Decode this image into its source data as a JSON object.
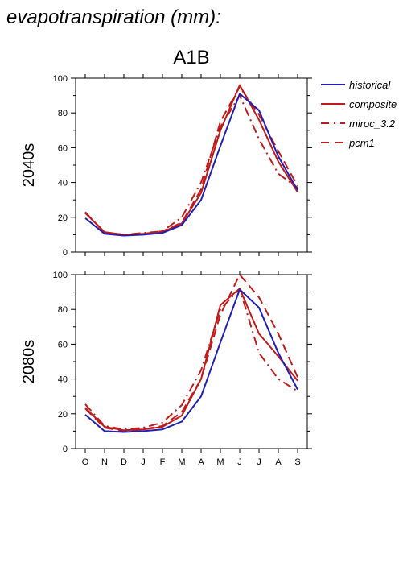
{
  "figure": {
    "title": "evapotranspiration (mm):",
    "scenario": "A1B"
  },
  "colors": {
    "historical": "#1f1fb4",
    "composite": "#c01b1b",
    "miroc_3.2": "#c01b1b",
    "pcm1": "#c01b1b"
  },
  "legend": [
    {
      "key": "historical",
      "label": "historical",
      "dash": "solid"
    },
    {
      "key": "composite",
      "label": "composite",
      "dash": "solid"
    },
    {
      "key": "miroc_3.2",
      "label": "miroc_3.2",
      "dash": "dashdot"
    },
    {
      "key": "pcm1",
      "label": "pcm1",
      "dash": "dash"
    }
  ],
  "chart_data": [
    {
      "type": "line",
      "row_label": "2040s",
      "categories": [
        "O",
        "N",
        "D",
        "J",
        "F",
        "M",
        "A",
        "M",
        "J",
        "J",
        "A",
        "S"
      ],
      "ylim": [
        0,
        100
      ],
      "yticks": [
        0,
        20,
        40,
        60,
        80,
        100
      ],
      "series": [
        {
          "name": "historical",
          "values": [
            19.5,
            10.5,
            9.5,
            10,
            11,
            15.5,
            30,
            61,
            91,
            81.5,
            55,
            35.5
          ]
        },
        {
          "name": "composite",
          "values": [
            22.5,
            11.5,
            10,
            10.5,
            11.5,
            16.5,
            34,
            70,
            96,
            76,
            52,
            34.5
          ]
        },
        {
          "name": "miroc_3.2",
          "values": [
            23,
            11,
            10,
            11,
            12,
            20,
            40,
            72,
            90,
            65,
            45,
            37
          ]
        },
        {
          "name": "pcm1",
          "values": [
            22.5,
            11.5,
            10,
            10.5,
            12,
            17,
            36,
            75,
            95,
            79,
            58,
            38
          ]
        }
      ]
    },
    {
      "type": "line",
      "row_label": "2080s",
      "categories": [
        "O",
        "N",
        "D",
        "J",
        "F",
        "M",
        "A",
        "M",
        "J",
        "J",
        "A",
        "S"
      ],
      "ylim": [
        0,
        100
      ],
      "yticks": [
        0,
        20,
        40,
        60,
        80,
        100
      ],
      "series": [
        {
          "name": "historical",
          "values": [
            19.5,
            10,
            9.5,
            10,
            11,
            15.5,
            30,
            61,
            91.5,
            81,
            55,
            34
          ]
        },
        {
          "name": "composite",
          "values": [
            23.5,
            12.5,
            10.5,
            11,
            12.5,
            19,
            40,
            82.5,
            92,
            66,
            53,
            39
          ]
        },
        {
          "name": "miroc_3.2",
          "values": [
            25.5,
            13,
            11,
            12,
            15,
            25,
            45,
            80,
            92,
            55,
            40,
            33
          ]
        },
        {
          "name": "pcm1",
          "values": [
            23,
            12,
            10,
            11,
            13,
            21,
            40,
            77,
            100,
            87,
            66,
            41
          ]
        }
      ]
    }
  ]
}
